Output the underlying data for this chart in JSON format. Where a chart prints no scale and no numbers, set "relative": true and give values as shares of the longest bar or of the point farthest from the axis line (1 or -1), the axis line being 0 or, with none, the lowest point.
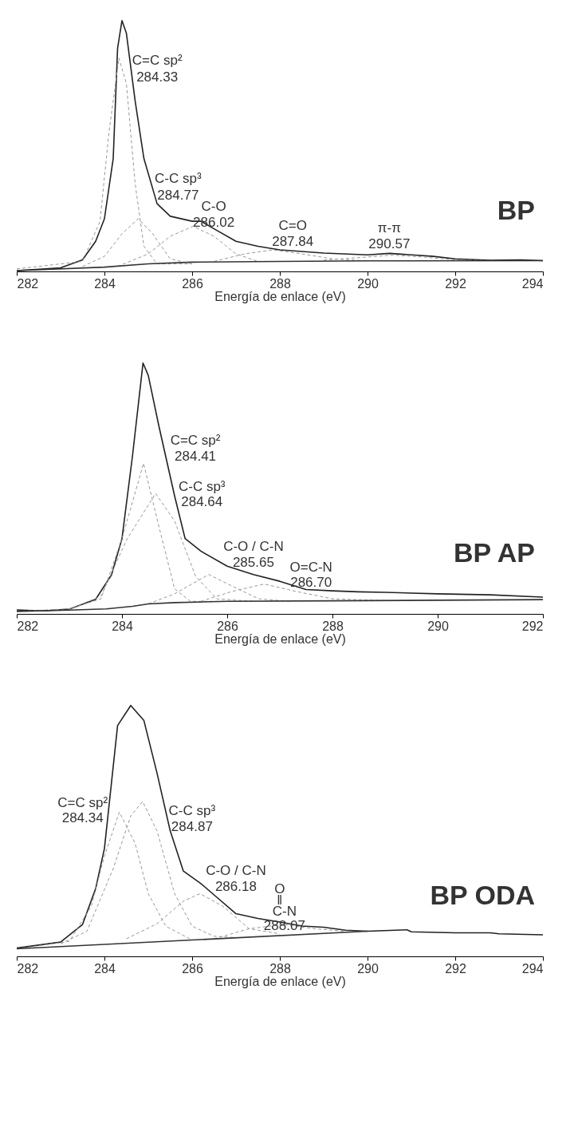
{
  "chart_data": [
    {
      "type": "line",
      "title": "BP",
      "xlabel": "Energía de enlace (eV)",
      "relative": true,
      "xlim": [
        282,
        294
      ],
      "xticks": [
        282,
        284,
        286,
        288,
        290,
        292,
        294
      ],
      "tick_labels": "x",
      "grid": false,
      "marker": "none",
      "series": [
        {
          "color": "#222222",
          "line_style": "solid",
          "x": [
            282,
            283,
            283.5,
            283.8,
            284.0,
            284.2,
            284.3,
            284.4,
            284.5,
            284.7,
            284.9,
            285.2,
            285.5,
            286.0,
            286.2,
            286.5,
            287.0,
            287.5,
            288,
            289,
            290,
            290.5,
            291,
            291.5,
            292,
            292.8,
            293.5,
            294
          ],
          "values": [
            0.003,
            0.014,
            0.046,
            0.12,
            0.21,
            0.45,
            0.89,
            1.0,
            0.95,
            0.68,
            0.45,
            0.27,
            0.22,
            0.2,
            0.2,
            0.17,
            0.12,
            0.1,
            0.086,
            0.073,
            0.066,
            0.072,
            0.066,
            0.06,
            0.05,
            0.044,
            0.046,
            0.043
          ]
        },
        {
          "color": "#999999",
          "line_style": "dashed",
          "x": [
            282,
            283.5,
            283.9,
            284.1,
            284.33,
            284.5,
            284.7,
            284.9,
            285.2,
            286
          ],
          "values": [
            0.01,
            0.04,
            0.2,
            0.55,
            0.85,
            0.75,
            0.35,
            0.1,
            0.03,
            0.03
          ]
        },
        {
          "color": "#999999",
          "line_style": "dashed",
          "x": [
            283.5,
            284.0,
            284.4,
            284.77,
            285.1,
            285.5,
            286
          ],
          "values": [
            0.02,
            0.06,
            0.15,
            0.21,
            0.15,
            0.05,
            0.03
          ]
        },
        {
          "color": "#999999",
          "line_style": "dashed",
          "x": [
            284.3,
            285,
            285.5,
            286.02,
            286.5,
            287,
            287.5,
            288
          ],
          "values": [
            0.02,
            0.07,
            0.14,
            0.18,
            0.14,
            0.07,
            0.04,
            0.04
          ]
        },
        {
          "color": "#999999",
          "line_style": "dashed",
          "x": [
            286.5,
            287.2,
            287.84,
            288.5,
            289.2,
            290
          ],
          "values": [
            0.04,
            0.07,
            0.086,
            0.07,
            0.05,
            0.042
          ]
        },
        {
          "color": "#999999",
          "line_style": "dashed",
          "x": [
            289,
            289.8,
            290.57,
            291.3,
            292,
            292.8
          ],
          "values": [
            0.045,
            0.055,
            0.065,
            0.057,
            0.046,
            0.043
          ]
        },
        {
          "color": "#333333",
          "line_style": "solid",
          "x": [
            282,
            284,
            285,
            286,
            288,
            290,
            294
          ],
          "values": [
            0.003,
            0.017,
            0.03,
            0.037,
            0.04,
            0.042,
            0.043
          ]
        }
      ],
      "annotations": [
        {
          "text": "C=C sp²",
          "x": 284.33,
          "y": 0.85
        },
        {
          "text": "284.33",
          "x": 284.33,
          "y": 0.85
        },
        {
          "text": "C-C sp³",
          "x": 284.77,
          "y": 0.21
        },
        {
          "text": "284.77",
          "x": 284.77,
          "y": 0.21
        },
        {
          "text": "C-O",
          "x": 286.02,
          "y": 0.18
        },
        {
          "text": "286.02",
          "x": 286.02,
          "y": 0.18
        },
        {
          "text": "C=O",
          "x": 287.84,
          "y": 0.086
        },
        {
          "text": "287.84",
          "x": 287.84,
          "y": 0.086
        },
        {
          "text": "π-π",
          "x": 290.57,
          "y": 0.065
        },
        {
          "text": "290.57",
          "x": 290.57,
          "y": 0.065
        }
      ]
    },
    {
      "type": "line",
      "title": "BP AP",
      "xlabel": "Energía de enlace (eV)",
      "relative": true,
      "xlim": [
        282,
        292
      ],
      "xticks": [
        282,
        284,
        286,
        288,
        290,
        292
      ],
      "tick_labels": "x",
      "grid": false,
      "marker": "none",
      "series": [
        {
          "color": "#222222",
          "line_style": "solid",
          "x": [
            282,
            282.5,
            283.0,
            283.5,
            283.8,
            284.0,
            284.2,
            284.4,
            284.5,
            284.7,
            285.0,
            285.2,
            285.5,
            286,
            286.5,
            287,
            287.5,
            288,
            288.5,
            289,
            290,
            291,
            292
          ],
          "values": [
            0.016,
            0.012,
            0.019,
            0.058,
            0.155,
            0.3,
            0.63,
            1.0,
            0.95,
            0.75,
            0.47,
            0.3,
            0.25,
            0.19,
            0.157,
            0.13,
            0.097,
            0.092,
            0.088,
            0.086,
            0.08,
            0.076,
            0.067
          ]
        },
        {
          "color": "#999999",
          "line_style": "dashed",
          "x": [
            282,
            283,
            283.6,
            284.0,
            284.41,
            284.7,
            285.0,
            285.3,
            286
          ],
          "values": [
            0.01,
            0.02,
            0.06,
            0.3,
            0.6,
            0.35,
            0.1,
            0.05,
            0.05
          ]
        },
        {
          "color": "#999999",
          "line_style": "dashed",
          "x": [
            283.0,
            283.6,
            284.1,
            284.64,
            285.0,
            285.4,
            285.8,
            286.5
          ],
          "values": [
            0.02,
            0.07,
            0.3,
            0.48,
            0.37,
            0.15,
            0.06,
            0.05
          ]
        },
        {
          "color": "#999999",
          "line_style": "dashed",
          "x": [
            284.5,
            285.0,
            285.65,
            286.1,
            286.6,
            287.2
          ],
          "values": [
            0.04,
            0.08,
            0.157,
            0.11,
            0.06,
            0.05
          ]
        },
        {
          "color": "#999999",
          "line_style": "dashed",
          "x": [
            285.5,
            286.1,
            286.7,
            287.3,
            288,
            289
          ],
          "values": [
            0.05,
            0.09,
            0.119,
            0.09,
            0.06,
            0.053
          ]
        },
        {
          "color": "#333333",
          "line_style": "solid",
          "x": [
            282,
            283,
            283.7,
            284.2,
            284.5,
            285,
            286,
            288,
            292
          ],
          "values": [
            0.01,
            0.015,
            0.02,
            0.03,
            0.04,
            0.045,
            0.05,
            0.052,
            0.057
          ]
        }
      ],
      "annotations": [
        {
          "text": "C=C sp²",
          "x": 284.41,
          "y": 0.6
        },
        {
          "text": "284.41",
          "x": 284.41,
          "y": 0.6
        },
        {
          "text": "C-C sp³",
          "x": 284.64,
          "y": 0.48
        },
        {
          "text": "284.64",
          "x": 284.64,
          "y": 0.48
        },
        {
          "text": "C-O / C-N",
          "x": 285.65,
          "y": 0.157
        },
        {
          "text": "285.65",
          "x": 285.65,
          "y": 0.157
        },
        {
          "text": "O=C-N",
          "x": 286.7,
          "y": 0.119
        },
        {
          "text": "286.70",
          "x": 286.7,
          "y": 0.119
        }
      ]
    },
    {
      "type": "line",
      "title": "BP ODA",
      "xlabel": "Energía de enlace (eV)",
      "relative": true,
      "xlim": [
        282,
        294
      ],
      "xticks": [
        282,
        284,
        286,
        288,
        290,
        292,
        294
      ],
      "tick_labels": "x",
      "grid": false,
      "marker": "none",
      "series": [
        {
          "color": "#222222",
          "line_style": "solid",
          "x": [
            282,
            283,
            283.5,
            283.8,
            284.0,
            284.3,
            284.6,
            284.9,
            285.2,
            285.5,
            285.8,
            286.2,
            286.5,
            287,
            287.5,
            288,
            288.5,
            289,
            289.5,
            290,
            290.9,
            291,
            292,
            292.8,
            293,
            294
          ],
          "values": [
            0.033,
            0.057,
            0.127,
            0.27,
            0.43,
            0.92,
            1.0,
            0.94,
            0.73,
            0.5,
            0.34,
            0.29,
            0.245,
            0.17,
            0.151,
            0.137,
            0.121,
            0.116,
            0.104,
            0.1,
            0.106,
            0.098,
            0.094,
            0.094,
            0.09,
            0.086
          ]
        },
        {
          "color": "#999999",
          "line_style": "dashed",
          "x": [
            282,
            283.2,
            283.7,
            284.0,
            284.34,
            284.7,
            285.0,
            285.4,
            286
          ],
          "values": [
            0.03,
            0.06,
            0.2,
            0.4,
            0.575,
            0.45,
            0.25,
            0.12,
            0.065
          ]
        },
        {
          "color": "#999999",
          "line_style": "dashed",
          "x": [
            283,
            283.6,
            284.2,
            284.6,
            284.87,
            285.2,
            285.6,
            286,
            286.5,
            287
          ],
          "values": [
            0.05,
            0.1,
            0.35,
            0.56,
            0.617,
            0.5,
            0.25,
            0.12,
            0.08,
            0.075
          ]
        },
        {
          "color": "#999999",
          "line_style": "dashed",
          "x": [
            284.5,
            285.2,
            285.8,
            286.18,
            286.7,
            287.3,
            288
          ],
          "values": [
            0.07,
            0.13,
            0.22,
            0.25,
            0.2,
            0.11,
            0.09
          ]
        },
        {
          "color": "#999999",
          "line_style": "dashed",
          "x": [
            286.5,
            287.3,
            288.07,
            288.8,
            289.5
          ],
          "values": [
            0.07,
            0.11,
            0.127,
            0.11,
            0.1
          ]
        },
        {
          "color": "#333333",
          "line_style": "solid",
          "x": [
            282,
            290
          ],
          "values": [
            0.03,
            0.1
          ]
        }
      ],
      "annotations": [
        {
          "text": "C=C sp²",
          "x": 284.34,
          "y": 0.575
        },
        {
          "text": "284.34",
          "x": 284.34,
          "y": 0.575
        },
        {
          "text": "C-C sp³",
          "x": 284.87,
          "y": 0.617
        },
        {
          "text": "284.87",
          "x": 284.87,
          "y": 0.617
        },
        {
          "text": "C-O / C-N",
          "x": 286.18,
          "y": 0.25
        },
        {
          "text": "286.18",
          "x": 286.18,
          "y": 0.25
        },
        {
          "text": "O",
          "x": 288.07,
          "y": 0.127
        },
        {
          "text": "‖",
          "x": 288.07,
          "y": 0.127
        },
        {
          "text": "C-N",
          "x": 288.07,
          "y": 0.127
        },
        {
          "text": "288.07",
          "x": 288.07,
          "y": 0.127
        }
      ]
    }
  ]
}
